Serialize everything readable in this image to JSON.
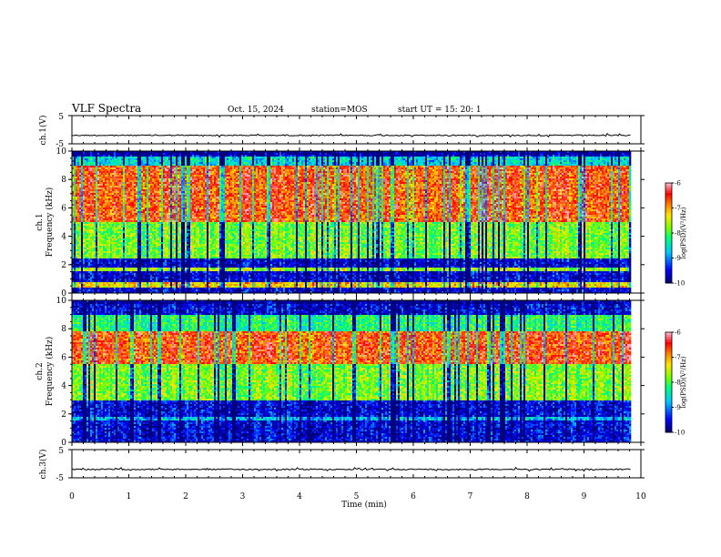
{
  "header": {
    "title": "VLF Spectra",
    "date": "Oct. 15, 2024",
    "station": "station=MOS",
    "start": "start  UT  =   15: 20: 1"
  },
  "chart_data": [
    {
      "type": "line",
      "name": "ch1-waveform",
      "ylabel": "ch.1(V)",
      "ylim": [
        -5,
        5
      ],
      "yticks": [
        "5",
        "-5"
      ],
      "level": -2,
      "xlim": [
        0,
        10
      ]
    },
    {
      "type": "heatmap",
      "name": "ch1-spectrogram",
      "ylabel_line1": "ch.1",
      "ylabel_line2": "Frequency  (kHz)",
      "ylim": [
        0,
        10
      ],
      "yticks": [
        "0",
        "2",
        "4",
        "6",
        "8",
        "10"
      ],
      "xlim": [
        0,
        10
      ],
      "colorbar": {
        "label": "log(PSD)(V²/Hz)",
        "ticks": [
          "-6",
          "-7",
          "-8",
          "-9",
          "-10"
        ],
        "range": [
          -10,
          -6
        ]
      },
      "bands_khz": [
        [
          5.0,
          9.0,
          -6.6
        ],
        [
          2.5,
          5.0,
          -7.8
        ],
        [
          9.0,
          9.6,
          -8.6
        ],
        [
          0.4,
          0.8,
          -7.2
        ],
        [
          1.6,
          1.8,
          -7.6
        ]
      ]
    },
    {
      "type": "heatmap",
      "name": "ch2-spectrogram",
      "ylabel_line1": "ch.2",
      "ylabel_line2": "Frequency  (kHz)",
      "ylim": [
        0,
        10
      ],
      "yticks": [
        "0",
        "2",
        "4",
        "6",
        "8",
        "10"
      ],
      "xlim": [
        0,
        10
      ],
      "colorbar": {
        "label": "log(PSD)(V²/Hz)",
        "ticks": [
          "-6",
          "-7",
          "-8",
          "-9",
          "-10"
        ],
        "range": [
          -10,
          -6
        ]
      },
      "bands_khz": [
        [
          5.5,
          7.8,
          -6.6
        ],
        [
          3.0,
          5.5,
          -7.8
        ],
        [
          7.8,
          9.0,
          -8.2
        ],
        [
          1.6,
          1.8,
          -8.8
        ]
      ]
    },
    {
      "type": "line",
      "name": "ch3-waveform",
      "ylabel": "ch.3(V)",
      "ylim": [
        -5,
        5
      ],
      "yticks": [
        "5",
        "-5"
      ],
      "level": -2,
      "xlim": [
        0,
        10
      ]
    }
  ],
  "xaxis": {
    "label": "Time  (min)",
    "ticks": [
      "0",
      "1",
      "2",
      "3",
      "4",
      "5",
      "6",
      "7",
      "8",
      "9",
      "10"
    ],
    "range": [
      0,
      10
    ],
    "data_end": 9.82
  }
}
